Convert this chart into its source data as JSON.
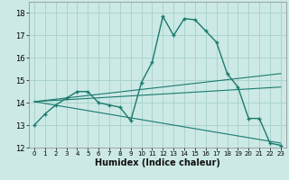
{
  "title": "",
  "xlabel": "Humidex (Indice chaleur)",
  "background_color": "#cce9e5",
  "grid_color": "#aad4ce",
  "line_color": "#1a7a6e",
  "xlim": [
    -0.5,
    23.5
  ],
  "ylim": [
    12,
    18.5
  ],
  "yticks": [
    12,
    13,
    14,
    15,
    16,
    17,
    18
  ],
  "xticks": [
    0,
    1,
    2,
    3,
    4,
    5,
    6,
    7,
    8,
    9,
    10,
    11,
    12,
    13,
    14,
    15,
    16,
    17,
    18,
    19,
    20,
    21,
    22,
    23
  ],
  "main_line_x": [
    0,
    1,
    2,
    3,
    4,
    5,
    6,
    7,
    8,
    9,
    10,
    11,
    12,
    13,
    14,
    15,
    16,
    17,
    18,
    19,
    20,
    21,
    22,
    23
  ],
  "main_line_y": [
    13.0,
    13.5,
    13.9,
    14.2,
    14.5,
    14.5,
    14.0,
    13.9,
    13.8,
    13.2,
    14.9,
    15.8,
    17.85,
    17.0,
    17.75,
    17.7,
    17.2,
    16.7,
    15.3,
    14.7,
    13.3,
    13.3,
    12.2,
    12.1
  ],
  "line1_x": [
    0,
    23
  ],
  "line1_y": [
    14.05,
    15.3
  ],
  "line2_x": [
    0,
    23
  ],
  "line2_y": [
    14.05,
    14.7
  ],
  "line3_x": [
    0,
    23
  ],
  "line3_y": [
    14.05,
    12.2
  ]
}
